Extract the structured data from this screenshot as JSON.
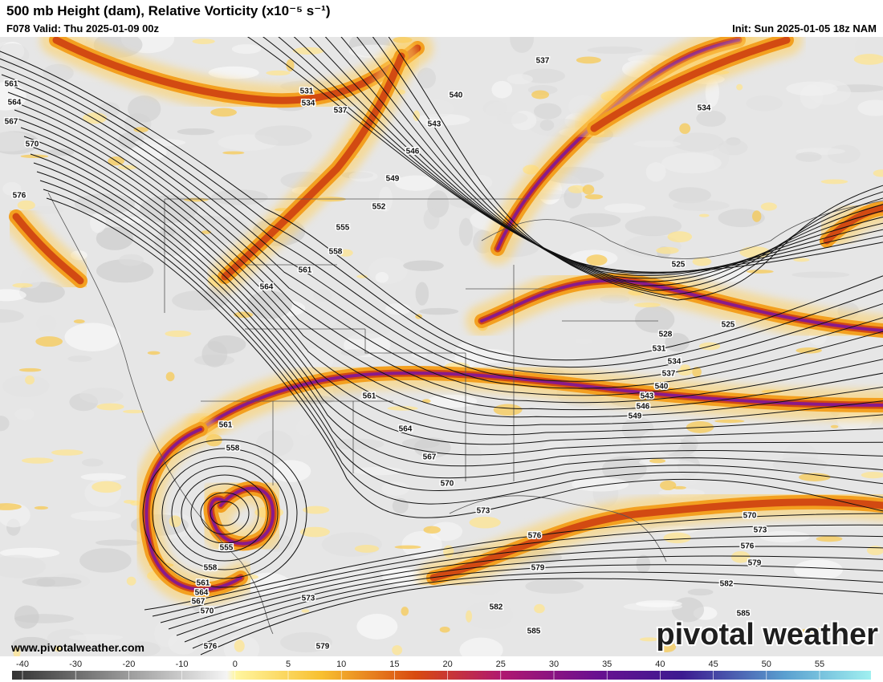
{
  "header": {
    "title": "500 mb Height (dam), Relative Vorticity (x10⁻⁵ s⁻¹)",
    "valid": "F078 Valid: Thu 2025-01-09 00z",
    "init": "Init: Sun 2025-01-05 18z NAM"
  },
  "footer": {
    "website": "www.pivotalweather.com",
    "watermark": "pivotal weather"
  },
  "colorbar": {
    "ticks": [
      -40,
      -30,
      -20,
      -10,
      0,
      5,
      10,
      15,
      20,
      25,
      30,
      35,
      40,
      45,
      50,
      55
    ]
  },
  "contour_labels": [
    561,
    564,
    567,
    570,
    576,
    531,
    534,
    537,
    537,
    540,
    543,
    546,
    549,
    552,
    555,
    558,
    561,
    564,
    534,
    525,
    525,
    528,
    531,
    534,
    537,
    540,
    543,
    546,
    549,
    561,
    561,
    558,
    564,
    567,
    570,
    573,
    576,
    579,
    582,
    585,
    570,
    573,
    576,
    579,
    582,
    585,
    555,
    558,
    561,
    564,
    567,
    570,
    573,
    576,
    579
  ]
}
